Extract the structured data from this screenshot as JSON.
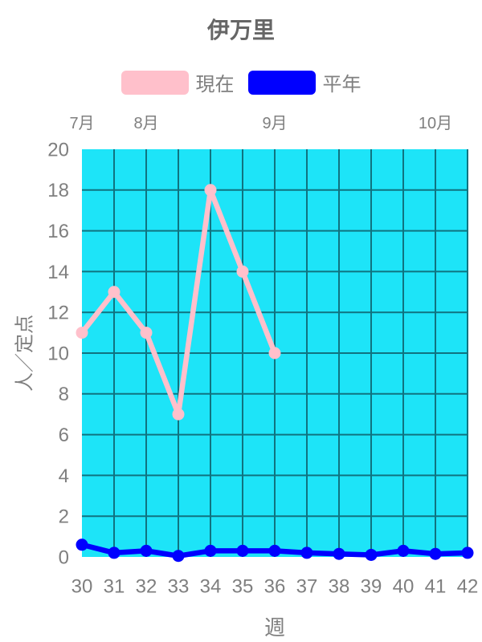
{
  "chart": {
    "title": "伊万里",
    "x_axis_title": "週",
    "y_axis_title": "人／定点"
  },
  "legend": {
    "items": [
      {
        "key": "current",
        "label": "現在",
        "color": "#ffc0cb"
      },
      {
        "key": "average",
        "label": "平年",
        "color": "#0000ff"
      }
    ]
  },
  "colors": {
    "page_background": "#ffffff",
    "plot_background": "#1de4f8",
    "grid": "#107380",
    "tick_text": "#7f7f7f",
    "title_text": "#666666",
    "current_series": "#ffc0cb",
    "average_series": "#0000ff"
  },
  "chart_data": {
    "type": "line",
    "title": "伊万里",
    "xlabel": "週",
    "ylabel": "人／定点",
    "x": [
      30,
      31,
      32,
      33,
      34,
      35,
      36,
      37,
      38,
      39,
      40,
      41,
      42
    ],
    "month_labels": [
      {
        "week": 30,
        "label": "7月"
      },
      {
        "week": 32,
        "label": "8月"
      },
      {
        "week": 36,
        "label": "9月"
      },
      {
        "week": 41,
        "label": "10月"
      }
    ],
    "ylim": [
      0,
      20
    ],
    "ytick_step": 2,
    "yticks": [
      0,
      2,
      4,
      6,
      8,
      10,
      12,
      14,
      16,
      18,
      20
    ],
    "grid": true,
    "legend_position": "top",
    "series": [
      {
        "key": "current",
        "name": "現在",
        "color": "#ffc0cb",
        "values": [
          11,
          13,
          11,
          7,
          18,
          14,
          10,
          null,
          null,
          null,
          null,
          null,
          null
        ]
      },
      {
        "key": "average",
        "name": "平年",
        "color": "#0000ff",
        "values": [
          0.6,
          0.2,
          0.3,
          0.05,
          0.3,
          0.3,
          0.3,
          0.2,
          0.15,
          0.1,
          0.3,
          0.15,
          0.2
        ]
      }
    ]
  }
}
